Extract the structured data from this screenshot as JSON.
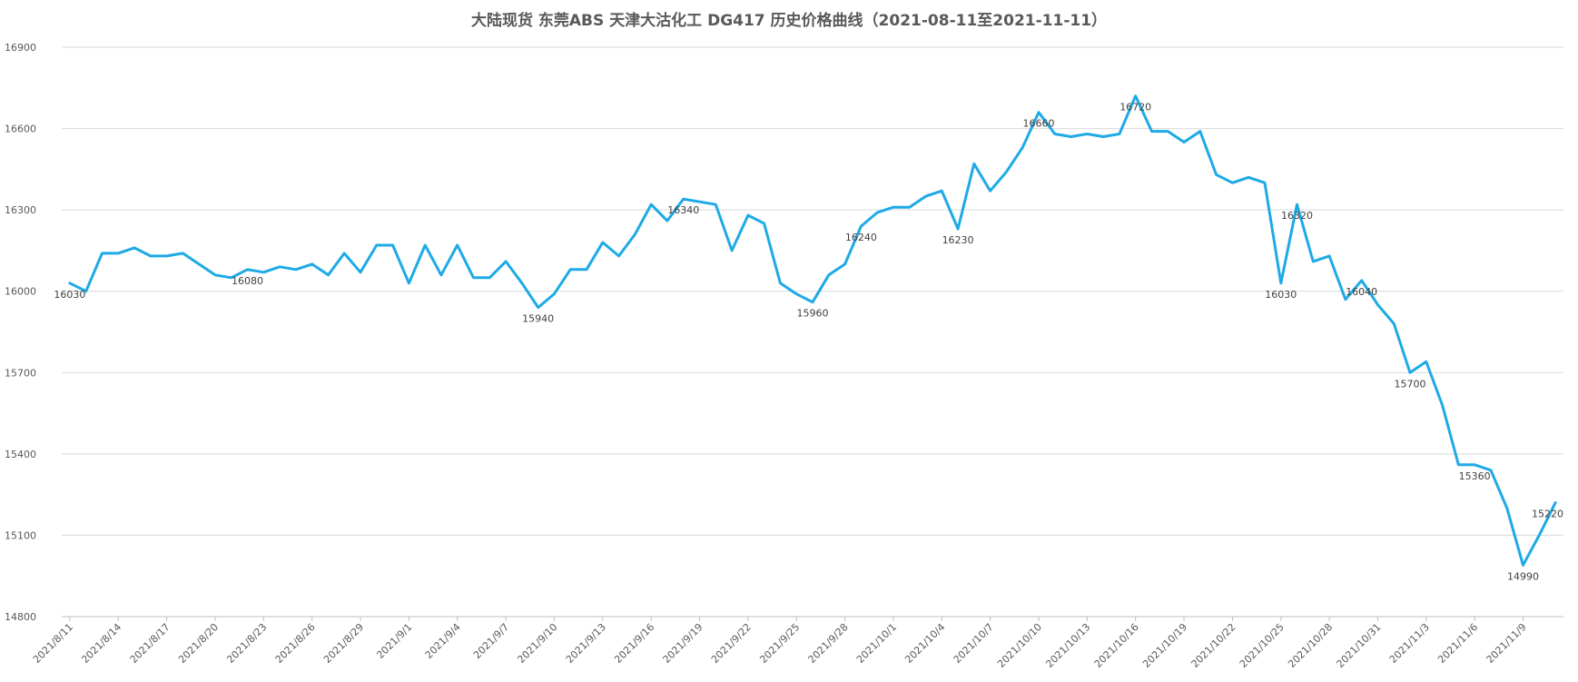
{
  "chart_data": {
    "type": "line",
    "title": "大陆现货 东莞ABS 天津大沽化工 DG417 历史价格曲线（2021-08-11至2021-11-11）",
    "xlabel": "",
    "ylabel": "",
    "ylim": [
      14800,
      16900
    ],
    "yticks": [
      14800,
      15100,
      15400,
      15700,
      16000,
      16300,
      16600,
      16900
    ],
    "grid": true,
    "legend": "none",
    "line_color": "#1eaae6",
    "x_tick_labels": [
      "2021/8/11",
      "2021/8/14",
      "2021/8/17",
      "2021/8/20",
      "2021/8/23",
      "2021/8/26",
      "2021/8/29",
      "2021/9/1",
      "2021/9/4",
      "2021/9/7",
      "2021/9/10",
      "2021/9/13",
      "2021/9/16",
      "2021/9/19",
      "2021/9/22",
      "2021/9/25",
      "2021/9/28",
      "2021/10/1",
      "2021/10/4",
      "2021/10/7",
      "2021/10/10",
      "2021/10/13",
      "2021/10/16",
      "2021/10/19",
      "2021/10/22",
      "2021/10/25",
      "2021/10/28",
      "2021/10/31",
      "2021/11/3",
      "2021/11/6",
      "2021/11/9"
    ],
    "x": [
      "2021/8/11",
      "2021/8/12",
      "2021/8/13",
      "2021/8/14",
      "2021/8/15",
      "2021/8/16",
      "2021/8/17",
      "2021/8/18",
      "2021/8/19",
      "2021/8/20",
      "2021/8/21",
      "2021/8/22",
      "2021/8/23",
      "2021/8/24",
      "2021/8/25",
      "2021/8/26",
      "2021/8/27",
      "2021/8/28",
      "2021/8/29",
      "2021/8/30",
      "2021/8/31",
      "2021/9/1",
      "2021/9/2",
      "2021/9/3",
      "2021/9/4",
      "2021/9/5",
      "2021/9/6",
      "2021/9/7",
      "2021/9/8",
      "2021/9/9",
      "2021/9/10",
      "2021/9/11",
      "2021/9/12",
      "2021/9/13",
      "2021/9/14",
      "2021/9/15",
      "2021/9/16",
      "2021/9/17",
      "2021/9/18",
      "2021/9/19",
      "2021/9/20",
      "2021/9/21",
      "2021/9/22",
      "2021/9/23",
      "2021/9/24",
      "2021/9/25",
      "2021/9/26",
      "2021/9/27",
      "2021/9/28",
      "2021/9/29",
      "2021/9/30",
      "2021/10/1",
      "2021/10/2",
      "2021/10/3",
      "2021/10/4",
      "2021/10/5",
      "2021/10/6",
      "2021/10/7",
      "2021/10/8",
      "2021/10/9",
      "2021/10/10",
      "2021/10/11",
      "2021/10/12",
      "2021/10/13",
      "2021/10/14",
      "2021/10/15",
      "2021/10/16",
      "2021/10/17",
      "2021/10/18",
      "2021/10/19",
      "2021/10/20",
      "2021/10/21",
      "2021/10/22",
      "2021/10/23",
      "2021/10/24",
      "2021/10/25",
      "2021/10/26",
      "2021/10/27",
      "2021/10/28",
      "2021/10/29",
      "2021/10/30",
      "2021/10/31",
      "2021/11/1",
      "2021/11/2",
      "2021/11/3",
      "2021/11/4",
      "2021/11/5",
      "2021/11/6",
      "2021/11/7",
      "2021/11/8",
      "2021/11/9",
      "2021/11/10",
      "2021/11/11"
    ],
    "series": [
      {
        "values": [
          16030,
          16000,
          16140,
          16140,
          16160,
          16130,
          16130,
          16140,
          16100,
          16060,
          16050,
          16080,
          16070,
          16090,
          16080,
          16100,
          16060,
          16140,
          16070,
          16170,
          16170,
          16030,
          16170,
          16060,
          16170,
          16050,
          16050,
          16110,
          16030,
          15940,
          15990,
          16080,
          16080,
          16180,
          16130,
          16210,
          16320,
          16260,
          16340,
          16330,
          16320,
          16150,
          16280,
          16250,
          16030,
          15990,
          15960,
          16060,
          16100,
          16240,
          16290,
          16310,
          16310,
          16350,
          16370,
          16230,
          16470,
          16370,
          16440,
          16530,
          16660,
          16580,
          16570,
          16580,
          16570,
          16580,
          16720,
          16590,
          16590,
          16550,
          16590,
          16430,
          16400,
          16420,
          16400,
          16030,
          16320,
          16110,
          16130,
          15970,
          16040,
          15950,
          15880,
          15700,
          15740,
          15580,
          15360,
          15360,
          15340,
          15200,
          14990,
          15100,
          15220
        ]
      }
    ],
    "data_labels": [
      {
        "x": "2021/8/11",
        "text": "16030"
      },
      {
        "x": "2021/8/22",
        "text": "16080"
      },
      {
        "x": "2021/9/9",
        "text": "15940"
      },
      {
        "x": "2021/9/18",
        "text": "16340"
      },
      {
        "x": "2021/9/26",
        "text": "15960"
      },
      {
        "x": "2021/9/29",
        "text": "16240"
      },
      {
        "x": "2021/10/5",
        "text": "16230"
      },
      {
        "x": "2021/10/10",
        "text": "16660"
      },
      {
        "x": "2021/10/16",
        "text": "16720"
      },
      {
        "x": "2021/10/25",
        "text": "16030"
      },
      {
        "x": "2021/10/26",
        "text": "16320"
      },
      {
        "x": "2021/10/30",
        "text": "16040"
      },
      {
        "x": "2021/11/2",
        "text": "15700"
      },
      {
        "x": "2021/11/6",
        "text": "15360"
      },
      {
        "x": "2021/11/9",
        "text": "14990"
      },
      {
        "x": "2021/11/11",
        "text": "15220"
      }
    ]
  }
}
